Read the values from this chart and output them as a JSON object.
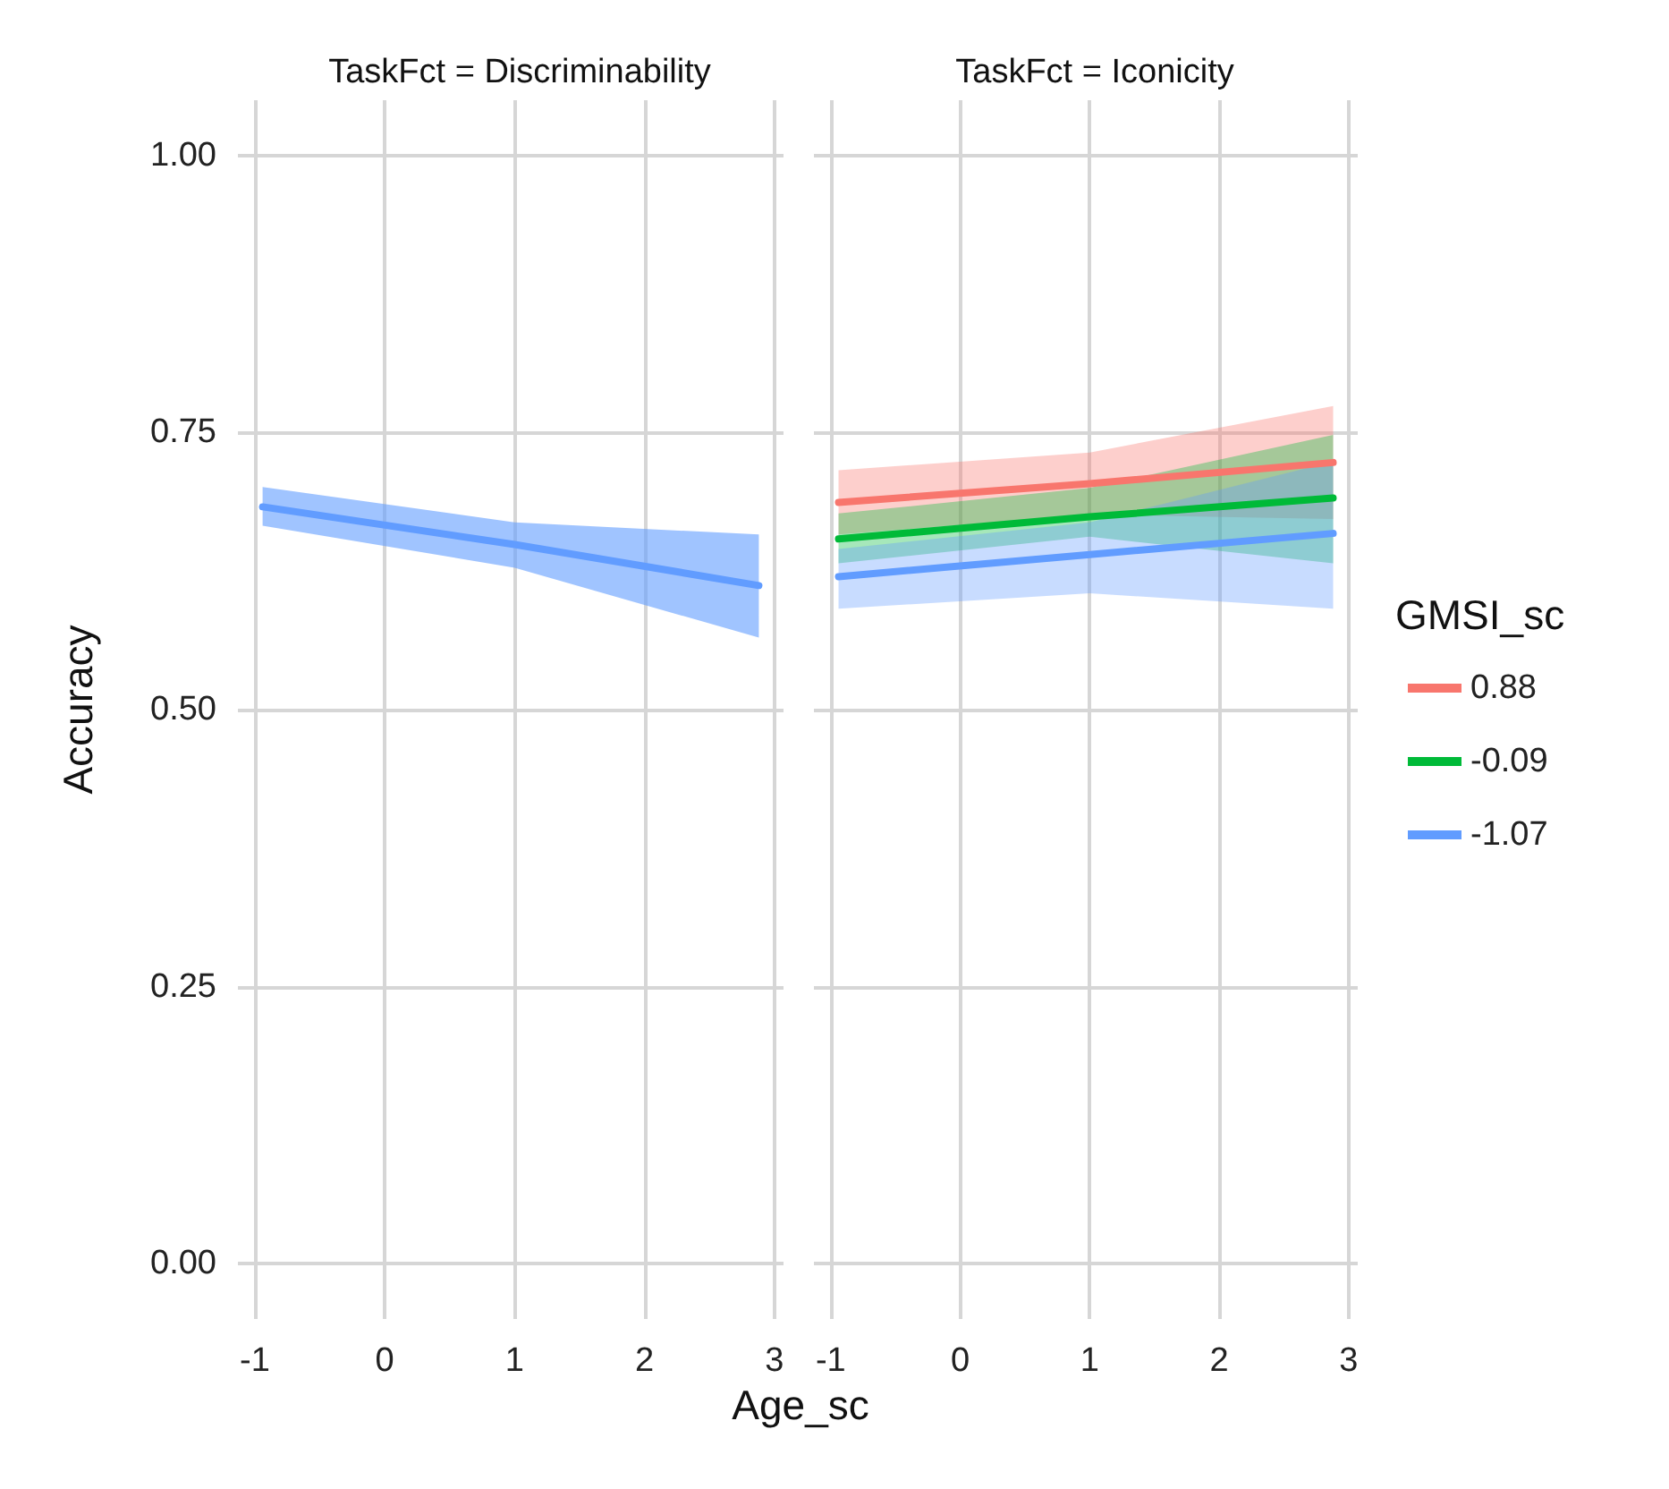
{
  "chart_data": [
    {
      "type": "line",
      "title": "TaskFct = Discriminability",
      "xlabel": "Age_sc",
      "ylabel": "Accuracy",
      "x": [
        -0.94,
        1,
        2.88
      ],
      "xlim": [
        -1.13,
        3.07
      ],
      "xticks": [
        -1,
        0,
        1,
        2,
        3
      ],
      "ylim": [
        -0.05,
        1.05
      ],
      "yticks": [
        {
          "value": 0,
          "label": "0.00"
        },
        {
          "value": 0.25,
          "label": "0.25"
        },
        {
          "value": 0.5,
          "label": "0.50"
        },
        {
          "value": 0.75,
          "label": "0.75"
        },
        {
          "value": 1,
          "label": "1.00"
        }
      ],
      "grid": true,
      "legend": false,
      "marker": "none",
      "line_style": "solid",
      "series": [
        {
          "color": "#619cff",
          "values": [
            0.683,
            0.649,
            0.612
          ],
          "lower": [
            0.666,
            0.628,
            0.565
          ],
          "upper": [
            0.701,
            0.669,
            0.658
          ]
        }
      ]
    },
    {
      "type": "line",
      "title": "TaskFct = Iconicity",
      "legend_title": "GMSI_sc",
      "x": [
        -0.94,
        1,
        2.88
      ],
      "xlim": [
        -1.13,
        3.07
      ],
      "xticks": [
        -1,
        0,
        1,
        2,
        3
      ],
      "ylim": [
        -0.05,
        1.05
      ],
      "yticks": [
        {
          "value": 0,
          "label": null
        },
        {
          "value": 0.25,
          "label": null
        },
        {
          "value": 0.5,
          "label": null
        },
        {
          "value": 0.75,
          "label": null
        },
        {
          "value": 1,
          "label": null
        }
      ],
      "tick_labels": "x",
      "grid": true,
      "legend": "right",
      "marker": "none",
      "line_style": "solid",
      "series": [
        {
          "name": "0.88",
          "color": "#f8766d",
          "values": [
            0.687,
            0.704,
            0.723
          ],
          "lower": [
            0.658,
            0.676,
            0.672
          ],
          "upper": [
            0.716,
            0.732,
            0.774
          ]
        },
        {
          "name": "-0.09",
          "color": "#00ba38",
          "values": [
            0.654,
            0.674,
            0.691
          ],
          "lower": [
            0.632,
            0.656,
            0.632
          ],
          "upper": [
            0.677,
            0.7,
            0.748
          ]
        },
        {
          "name": "-1.07",
          "color": "#619cff",
          "values": [
            0.62,
            0.64,
            0.659
          ],
          "lower": [
            0.591,
            0.605,
            0.591
          ],
          "upper": [
            0.645,
            0.669,
            0.724
          ]
        }
      ]
    }
  ]
}
